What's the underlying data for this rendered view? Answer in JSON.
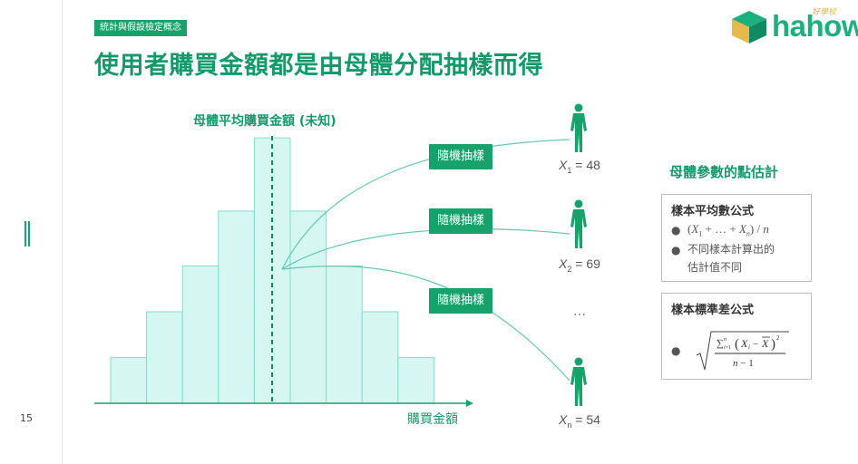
{
  "page": {
    "tag": "統計與假設檢定概念",
    "title": "使用者購買金額都是由母體分配抽樣而得",
    "page_number": "15",
    "logo": {
      "word": "hahow",
      "sub": "好學校"
    }
  },
  "diagram": {
    "distribution_title": "母體平均購買金額 (未知)",
    "x_axis_label": "購買金額",
    "histogram_values": [
      1,
      2,
      3,
      4.2,
      5.8,
      4.2,
      3,
      2,
      1
    ],
    "colors": {
      "bar_fill": "#d6f6f1",
      "bar_stroke": "#7fe0cf",
      "accent": "#17a26c",
      "curve": "#64c9b3"
    },
    "sampling_label": "隨機抽樣",
    "samples": [
      {
        "var": "X",
        "sub": "1",
        "eq": " = 48"
      },
      {
        "var": "X",
        "sub": "2",
        "eq": " = 69"
      },
      {
        "var": "X",
        "sub": "n",
        "eq": " = 54"
      }
    ],
    "ellipsis": "…"
  },
  "panel": {
    "title": "母體參數的點估計",
    "mean_card": {
      "heading": "樣本平均數公式",
      "bullet_1_formula": "(X1 + … + Xn) / n",
      "bullet_2_line_1": "不同樣本計算出的",
      "bullet_2_line_2": "估計值不同"
    },
    "sd_card": {
      "heading": "樣本標準差公式"
    }
  }
}
